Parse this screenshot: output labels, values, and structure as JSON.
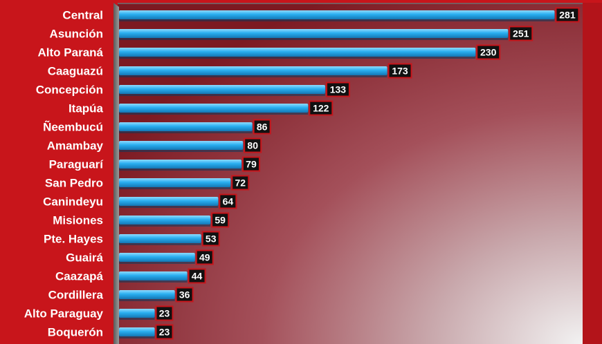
{
  "chart_data": {
    "type": "bar",
    "orientation": "horizontal",
    "categories": [
      "Central",
      "Asunción",
      "Alto Paraná",
      "Caaguazú",
      "Concepción",
      "Itapúa",
      "Ñeembucú",
      "Amambay",
      "Paraguarí",
      "San Pedro",
      "Canindeyu",
      "Misiones",
      "Pte. Hayes",
      "Guairá",
      "Caazapá",
      "Cordillera",
      "Alto Paraguay",
      "Boquerón"
    ],
    "values": [
      281,
      251,
      230,
      173,
      133,
      122,
      86,
      80,
      79,
      72,
      64,
      59,
      53,
      49,
      44,
      36,
      23,
      23
    ],
    "title": "",
    "xlabel": "",
    "ylabel": "",
    "xlim": [
      0,
      300
    ],
    "grid": false,
    "legend": "none",
    "data_labels": true
  },
  "colors": {
    "background": "#c8151b",
    "bar": "#29aef0",
    "bar_highlight": "#8fdcff",
    "label_box": "#111111",
    "label_border": "#c8151b",
    "text": "#ffffff"
  }
}
